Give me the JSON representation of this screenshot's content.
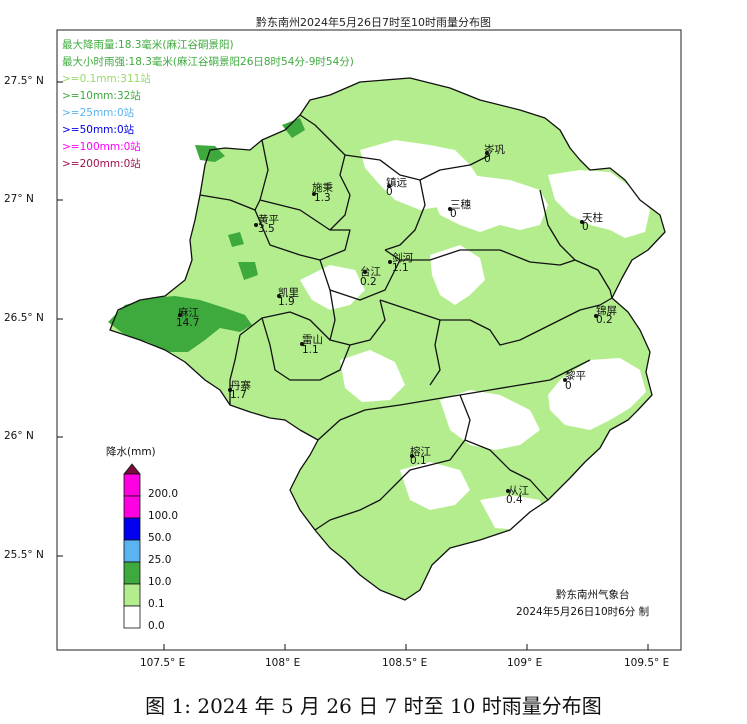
{
  "title": "黔东南州2024年5月26日7时至10时雨量分布图",
  "stats": {
    "max_rain": "最大降雨量:18.3毫米(麻江谷硐景阳)",
    "max_hourly": "最大小时雨强:18.3毫米(麻江谷硐景阳26日8时54分-9时54分)",
    "counts": [
      {
        "text": ">=0.1mm:311站",
        "color": "#b7ec8e"
      },
      {
        "text": ">=10mm:32站",
        "color": "#3eaa3e"
      },
      {
        "text": ">=25mm:0站",
        "color": "#5ab4f0"
      },
      {
        "text": ">=50mm:0站",
        "color": "#0000e0"
      },
      {
        "text": ">=100mm:0站",
        "color": "#ff00ff"
      },
      {
        "text": ">=200mm:0站",
        "color": "#a01050"
      }
    ]
  },
  "axes": {
    "lat_labels": [
      "27.5° N",
      "27° N",
      "26.5° N",
      "26° N",
      "25.5° N"
    ],
    "lon_labels": [
      "107.5° E",
      "108° E",
      "108.5° E",
      "109° E",
      "109.5° E"
    ]
  },
  "stations": [
    {
      "name": "镇远",
      "value": "0"
    },
    {
      "name": "岑巩",
      "value": "0"
    },
    {
      "name": "施秉",
      "value": "1.3"
    },
    {
      "name": "三穗",
      "value": "0"
    },
    {
      "name": "天柱",
      "value": "0"
    },
    {
      "name": "黄平",
      "value": "3.5"
    },
    {
      "name": "剑河",
      "value": "1.1"
    },
    {
      "name": "台江",
      "value": "0.2"
    },
    {
      "name": "凯里",
      "value": "1.9"
    },
    {
      "name": "锦屏",
      "value": "0.2"
    },
    {
      "name": "麻江",
      "value": "14.7"
    },
    {
      "name": "雷山",
      "value": "1.1"
    },
    {
      "name": "黎平",
      "value": "0"
    },
    {
      "name": "丹寨",
      "value": "1.7"
    },
    {
      "name": "榕江",
      "value": "0.1"
    },
    {
      "name": "从江",
      "value": "0.4"
    }
  ],
  "legend": {
    "title": "降水(mm)",
    "levels": [
      "200.0",
      "100.0",
      "50.0",
      "25.0",
      "10.0",
      "0.1",
      "0.0"
    ],
    "colors": {
      "over_200": "#7a0b3c",
      "100_200": "#ff00e0",
      "50_100": "#0000ee",
      "25_50": "#5ab4f0",
      "10_25": "#3eaa3e",
      "0.1_10": "#b3ed8d",
      "0_0.1": "#ffffff"
    }
  },
  "agency": "黔东南州气象台",
  "issued": "2024年5月26日10时6分  制",
  "caption": "图 1: 2024 年 5 月 26 日 7 时至 10 时雨量分布图"
}
